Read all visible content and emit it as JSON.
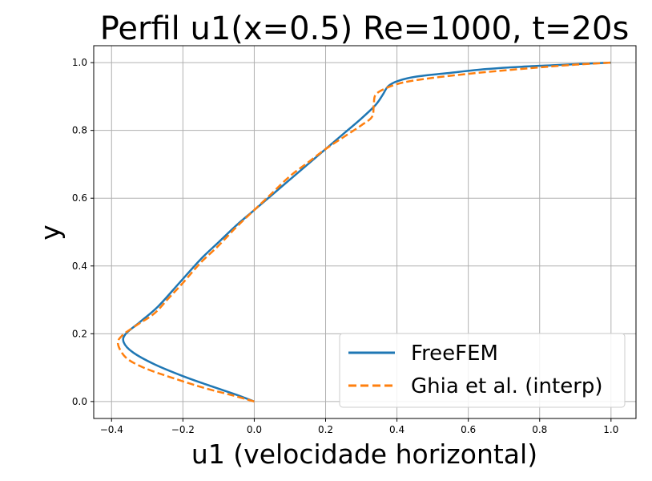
{
  "chart_data": {
    "type": "line",
    "title": "Perfil u1(x=0.5) Re=1000, t=20s",
    "xlabel": "u1 (velocidade horizontal)",
    "ylabel": "y",
    "xlim": [
      -0.45,
      1.07
    ],
    "ylim": [
      -0.05,
      1.05
    ],
    "xticks": [
      -0.4,
      -0.2,
      0.0,
      0.2,
      0.4,
      0.6,
      0.8,
      1.0
    ],
    "yticks": [
      0.0,
      0.2,
      0.4,
      0.6,
      0.8,
      1.0
    ],
    "xtick_labels": [
      "−0.4",
      "−0.2",
      "0.0",
      "0.2",
      "0.4",
      "0.6",
      "0.8",
      "1.0"
    ],
    "ytick_labels": [
      "0.0",
      "0.2",
      "0.4",
      "0.6",
      "0.8",
      "1.0"
    ],
    "grid": true,
    "legend_position": "lower-right",
    "series": [
      {
        "name": "FreeFEM",
        "color": "#1f77b4",
        "style": "solid",
        "points": [
          [
            0.0,
            0.0
          ],
          [
            -0.05,
            0.02
          ],
          [
            -0.12,
            0.045
          ],
          [
            -0.2,
            0.075
          ],
          [
            -0.28,
            0.11
          ],
          [
            -0.34,
            0.145
          ],
          [
            -0.366,
            0.175
          ],
          [
            -0.36,
            0.2
          ],
          [
            -0.32,
            0.235
          ],
          [
            -0.27,
            0.28
          ],
          [
            -0.21,
            0.35
          ],
          [
            -0.15,
            0.42
          ],
          [
            -0.1,
            0.47
          ],
          [
            -0.05,
            0.52
          ],
          [
            0.0,
            0.565
          ],
          [
            0.05,
            0.61
          ],
          [
            0.1,
            0.655
          ],
          [
            0.15,
            0.7
          ],
          [
            0.2,
            0.745
          ],
          [
            0.25,
            0.79
          ],
          [
            0.3,
            0.835
          ],
          [
            0.34,
            0.875
          ],
          [
            0.36,
            0.905
          ],
          [
            0.375,
            0.93
          ],
          [
            0.4,
            0.945
          ],
          [
            0.45,
            0.958
          ],
          [
            0.55,
            0.97
          ],
          [
            0.65,
            0.981
          ],
          [
            0.75,
            0.988
          ],
          [
            0.85,
            0.993
          ],
          [
            0.95,
            0.998
          ],
          [
            1.0,
            1.0
          ]
        ]
      },
      {
        "name": "Ghia et al. (interp)",
        "color": "#ff7f0e",
        "style": "dashed",
        "points": [
          [
            0.0,
            0.0
          ],
          [
            -0.06,
            0.018
          ],
          [
            -0.14,
            0.04
          ],
          [
            -0.23,
            0.07
          ],
          [
            -0.31,
            0.1
          ],
          [
            -0.36,
            0.13
          ],
          [
            -0.382,
            0.17
          ],
          [
            -0.37,
            0.195
          ],
          [
            -0.33,
            0.225
          ],
          [
            -0.28,
            0.26
          ],
          [
            -0.24,
            0.305
          ],
          [
            -0.2,
            0.35
          ],
          [
            -0.15,
            0.41
          ],
          [
            -0.1,
            0.46
          ],
          [
            -0.05,
            0.515
          ],
          [
            0.0,
            0.565
          ],
          [
            0.05,
            0.615
          ],
          [
            0.1,
            0.665
          ],
          [
            0.15,
            0.705
          ],
          [
            0.2,
            0.745
          ],
          [
            0.25,
            0.78
          ],
          [
            0.3,
            0.815
          ],
          [
            0.33,
            0.84
          ],
          [
            0.335,
            0.875
          ],
          [
            0.34,
            0.905
          ],
          [
            0.37,
            0.925
          ],
          [
            0.42,
            0.942
          ],
          [
            0.5,
            0.955
          ],
          [
            0.6,
            0.967
          ],
          [
            0.7,
            0.977
          ],
          [
            0.8,
            0.986
          ],
          [
            0.9,
            0.994
          ],
          [
            1.0,
            1.0
          ]
        ]
      }
    ]
  }
}
